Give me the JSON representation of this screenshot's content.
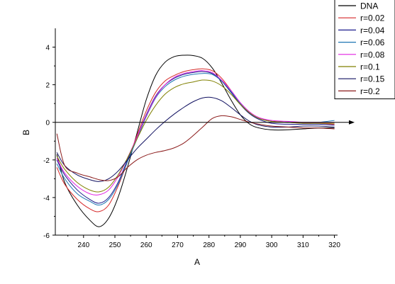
{
  "chart_data": {
    "type": "line",
    "title": "",
    "xlabel": "A",
    "ylabel": "B",
    "xlim": [
      231,
      321
    ],
    "ylim": [
      -6,
      5
    ],
    "xticks": [
      240,
      250,
      260,
      270,
      280,
      290,
      300,
      310,
      320
    ],
    "yticks": [
      -6,
      -4,
      -2,
      0,
      2,
      4
    ],
    "grid": false,
    "legend_position": "top-right",
    "zero_axis": true,
    "series": [
      {
        "name": "DNA",
        "color": "#000000",
        "x": [
          231.5,
          234,
          238,
          242,
          245,
          248,
          251,
          254,
          257,
          260,
          263,
          266,
          269,
          272,
          275,
          278,
          281,
          284,
          287,
          290,
          293,
          296,
          300,
          305,
          310,
          315,
          320
        ],
        "y": [
          -1.7,
          -3.2,
          -4.4,
          -5.2,
          -5.55,
          -5.1,
          -4.0,
          -2.4,
          -0.6,
          1.2,
          2.5,
          3.2,
          3.5,
          3.57,
          3.55,
          3.4,
          2.9,
          2.1,
          1.2,
          0.4,
          -0.1,
          -0.3,
          -0.4,
          -0.4,
          -0.35,
          -0.3,
          -0.3
        ]
      },
      {
        "name": "r=0.02",
        "color": "#d62728",
        "x": [
          231.5,
          234,
          238,
          242,
          245,
          248,
          251,
          254,
          257,
          260,
          263,
          266,
          269,
          272,
          275,
          278,
          281,
          284,
          287,
          290,
          293,
          296,
          300,
          305,
          310,
          315,
          320
        ],
        "y": [
          -2.4,
          -3.3,
          -4.1,
          -4.6,
          -4.75,
          -4.4,
          -3.4,
          -2.1,
          -0.7,
          0.6,
          1.6,
          2.2,
          2.5,
          2.7,
          2.8,
          2.85,
          2.75,
          2.35,
          1.7,
          1.0,
          0.5,
          0.2,
          0.05,
          0.0,
          -0.05,
          -0.05,
          -0.1
        ]
      },
      {
        "name": "r=0.04",
        "color": "#1a1a8c",
        "x": [
          231.5,
          234,
          238,
          242,
          245,
          248,
          251,
          254,
          257,
          260,
          263,
          266,
          269,
          272,
          275,
          278,
          281,
          284,
          287,
          290,
          293,
          296,
          300,
          305,
          310,
          315,
          320
        ],
        "y": [
          -2.0,
          -2.8,
          -3.6,
          -4.1,
          -4.3,
          -4.0,
          -3.2,
          -2.0,
          -0.8,
          0.4,
          1.4,
          2.0,
          2.35,
          2.55,
          2.65,
          2.7,
          2.6,
          2.2,
          1.6,
          0.95,
          0.45,
          0.15,
          -0.05,
          -0.1,
          -0.1,
          -0.1,
          -0.15
        ]
      },
      {
        "name": "r=0.06",
        "color": "#1f77b4",
        "x": [
          231.5,
          234,
          238,
          242,
          245,
          248,
          251,
          254,
          257,
          260,
          263,
          266,
          269,
          272,
          275,
          278,
          281,
          284,
          287,
          290,
          293,
          296,
          300,
          305,
          310,
          315,
          320
        ],
        "y": [
          -2.2,
          -3.0,
          -3.8,
          -4.2,
          -4.4,
          -4.1,
          -3.3,
          -2.1,
          -0.9,
          0.3,
          1.3,
          1.9,
          2.25,
          2.45,
          2.55,
          2.6,
          2.55,
          2.2,
          1.65,
          1.0,
          0.5,
          0.2,
          0.05,
          0.0,
          0.0,
          0.0,
          0.1
        ]
      },
      {
        "name": "r=0.08",
        "color": "#e020e0",
        "x": [
          231.5,
          234,
          238,
          242,
          245,
          248,
          251,
          254,
          257,
          260,
          263,
          266,
          269,
          272,
          275,
          278,
          281,
          284,
          287,
          290,
          293,
          296,
          300,
          305,
          310,
          315,
          320
        ],
        "y": [
          -1.9,
          -2.7,
          -3.4,
          -3.8,
          -3.85,
          -3.6,
          -2.9,
          -1.9,
          -0.8,
          0.35,
          1.35,
          2.0,
          2.4,
          2.6,
          2.7,
          2.75,
          2.65,
          2.25,
          1.7,
          1.05,
          0.55,
          0.25,
          0.1,
          0.05,
          0.0,
          0.0,
          0.0
        ]
      },
      {
        "name": "r=0.1",
        "color": "#808000",
        "x": [
          231.5,
          234,
          238,
          242,
          245,
          248,
          251,
          254,
          257,
          260,
          263,
          266,
          269,
          272,
          275,
          278,
          281,
          284,
          287,
          290,
          293,
          296,
          300,
          305,
          310,
          315,
          320
        ],
        "y": [
          -1.8,
          -2.5,
          -3.2,
          -3.6,
          -3.7,
          -3.45,
          -2.8,
          -1.9,
          -0.9,
          0.1,
          0.9,
          1.5,
          1.85,
          2.05,
          2.15,
          2.25,
          2.2,
          1.95,
          1.5,
          0.95,
          0.5,
          0.2,
          0.05,
          0.0,
          -0.05,
          -0.05,
          -0.05
        ]
      },
      {
        "name": "r=0.15",
        "color": "#101060",
        "x": [
          231.5,
          234,
          238,
          242,
          245,
          248,
          251,
          254,
          257,
          260,
          263,
          266,
          269,
          272,
          275,
          278,
          281,
          284,
          287,
          290,
          293,
          296,
          300,
          305,
          310,
          315,
          320
        ],
        "y": [
          -1.6,
          -2.3,
          -2.8,
          -3.05,
          -3.15,
          -3.0,
          -2.6,
          -2.0,
          -1.4,
          -0.9,
          -0.4,
          0.05,
          0.45,
          0.8,
          1.1,
          1.3,
          1.32,
          1.15,
          0.8,
          0.4,
          0.05,
          -0.15,
          -0.25,
          -0.25,
          -0.2,
          -0.2,
          -0.25
        ]
      },
      {
        "name": "r=0.2",
        "color": "#8b1a1a",
        "x": [
          231.5,
          234,
          238,
          242,
          245,
          248,
          251,
          254,
          257,
          260,
          263,
          266,
          269,
          272,
          275,
          278,
          281,
          284,
          287,
          290,
          293,
          296,
          300,
          305,
          310,
          315,
          320
        ],
        "y": [
          -0.6,
          -2.3,
          -2.7,
          -2.9,
          -3.05,
          -3.1,
          -2.9,
          -2.4,
          -2.0,
          -1.75,
          -1.6,
          -1.5,
          -1.35,
          -1.1,
          -0.7,
          -0.25,
          0.2,
          0.35,
          0.3,
          0.15,
          0.0,
          -0.1,
          -0.2,
          -0.25,
          -0.3,
          -0.3,
          -0.35
        ]
      }
    ]
  }
}
